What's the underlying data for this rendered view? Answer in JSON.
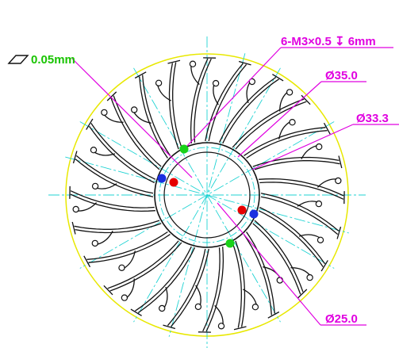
{
  "flatness": {
    "value": "0.05mm"
  },
  "callouts": {
    "thread": "6-M3×0.5 ↧ 6mm",
    "dia1": "Ø35.0",
    "dia2": "Ø33.3",
    "dia3": "Ø25.0"
  },
  "colors": {
    "outline": "#111111",
    "center_line": "#1fd3d3",
    "dimension": "#e000e0",
    "flatness": "#19c400",
    "outer_circle": "#e8e800",
    "hole_red": "#e60000",
    "hole_blue": "#1a2fe0",
    "hole_green": "#19d119"
  },
  "icons": {
    "flatness_symbol": "parallelogram-icon"
  }
}
